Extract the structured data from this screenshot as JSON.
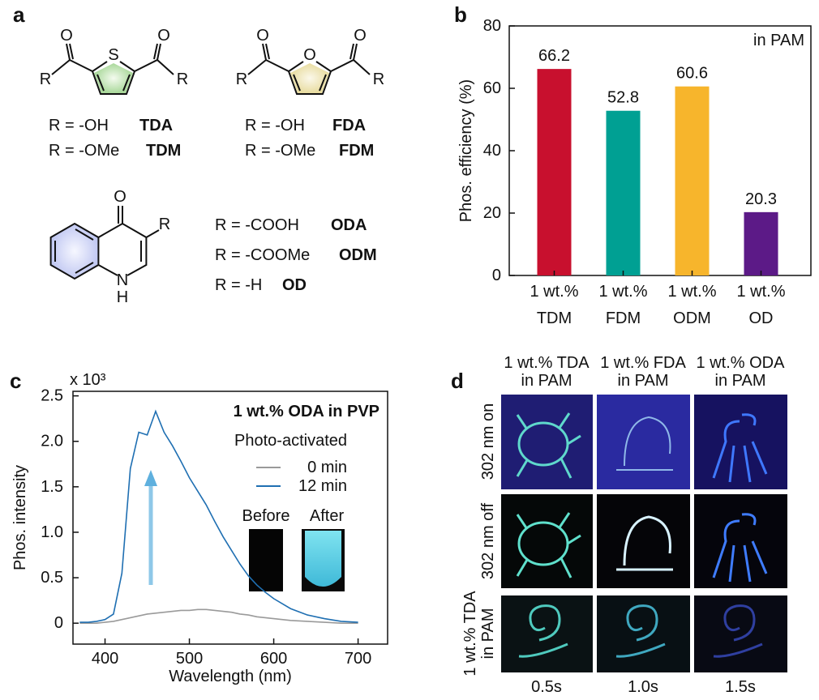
{
  "panel_labels": [
    "a",
    "b",
    "c",
    "d"
  ],
  "structures": [
    {
      "atoms": [
        "O",
        "O",
        "S",
        "R",
        "R"
      ],
      "names": [
        {
          "r": "R = -OH",
          "name": "TDA"
        },
        {
          "r": "R = -OMe",
          "name": "TDM"
        }
      ]
    },
    {
      "atoms": [
        "O",
        "O",
        "O",
        "R",
        "R"
      ],
      "names": [
        {
          "r": "R = -OH",
          "name": "FDA"
        },
        {
          "r": "R = -OMe",
          "name": "FDM"
        }
      ]
    },
    {
      "atoms": [
        "O",
        "R",
        "N",
        "H"
      ],
      "names": [
        {
          "r": "R = -COOH",
          "name": "ODA"
        },
        {
          "r": "R = -COOMe",
          "name": "ODM"
        },
        {
          "r": "R = -H",
          "name": "OD"
        }
      ]
    }
  ],
  "chart_data": [
    {
      "type": "bar",
      "ylabel": "Phos. efficiency (%)",
      "annotation": "in PAM",
      "categories": [
        [
          "1 wt.%",
          "TDM"
        ],
        [
          "1 wt.%",
          "FDM"
        ],
        [
          "1 wt.%",
          "ODM"
        ],
        [
          "1 wt.%",
          "OD"
        ]
      ],
      "values": [
        66.2,
        52.8,
        60.6,
        20.3
      ],
      "colors": [
        "#c8102e",
        "#00a093",
        "#f7b52c",
        "#5c1a87"
      ],
      "ylim": [
        0,
        80
      ],
      "yticks": [
        0,
        20,
        40,
        60,
        80
      ]
    },
    {
      "type": "line",
      "xlabel": "Wavelength (nm)",
      "ylabel": "Phos. intensity",
      "y_multiplier": "x 10³",
      "annotation": "1 wt.% ODA in PVP",
      "legend_title": "Photo-activated",
      "inset_labels": [
        "Before",
        "After"
      ],
      "x": [
        370,
        380,
        390,
        400,
        410,
        420,
        430,
        440,
        450,
        460,
        470,
        480,
        490,
        500,
        510,
        520,
        530,
        540,
        550,
        560,
        570,
        580,
        590,
        600,
        620,
        640,
        660,
        680,
        700
      ],
      "series": [
        {
          "name": "0 min",
          "color": "#9a9a9a",
          "values": [
            0,
            0,
            0,
            0.01,
            0.02,
            0.04,
            0.06,
            0.08,
            0.1,
            0.11,
            0.12,
            0.13,
            0.14,
            0.14,
            0.15,
            0.15,
            0.14,
            0.13,
            0.12,
            0.1,
            0.09,
            0.07,
            0.06,
            0.05,
            0.03,
            0.02,
            0.01,
            0,
            0
          ]
        },
        {
          "name": "12 min",
          "color": "#1f6fb2",
          "values": [
            0.01,
            0.01,
            0.02,
            0.04,
            0.1,
            0.55,
            1.7,
            2.1,
            2.07,
            2.33,
            2.1,
            1.95,
            1.78,
            1.6,
            1.45,
            1.3,
            1.12,
            0.95,
            0.8,
            0.65,
            0.52,
            0.42,
            0.34,
            0.27,
            0.16,
            0.09,
            0.05,
            0.02,
            0.01
          ]
        }
      ],
      "xlim": [
        362,
        735
      ],
      "xticks": [
        400,
        500,
        600,
        700
      ],
      "ylim": [
        -0.23,
        2.55
      ],
      "yticks": [
        0,
        0.5,
        {
          "value": 1,
          "label": "1.0"
        },
        1.5,
        {
          "value": 2,
          "label": "2.0"
        },
        2.5
      ]
    }
  ],
  "image_panel": {
    "columns": [
      [
        "1 wt.% TDA",
        "in PAM"
      ],
      [
        "1 wt.% FDA",
        "in PAM"
      ],
      [
        "1 wt.% ODA",
        "in PAM"
      ]
    ],
    "rows": [
      [
        "302 nm on"
      ],
      [
        "302 nm off"
      ],
      [
        "1 wt.% TDA",
        "in PAM"
      ]
    ],
    "times": [
      "0.5s",
      "1.0s",
      "1.5s"
    ]
  }
}
